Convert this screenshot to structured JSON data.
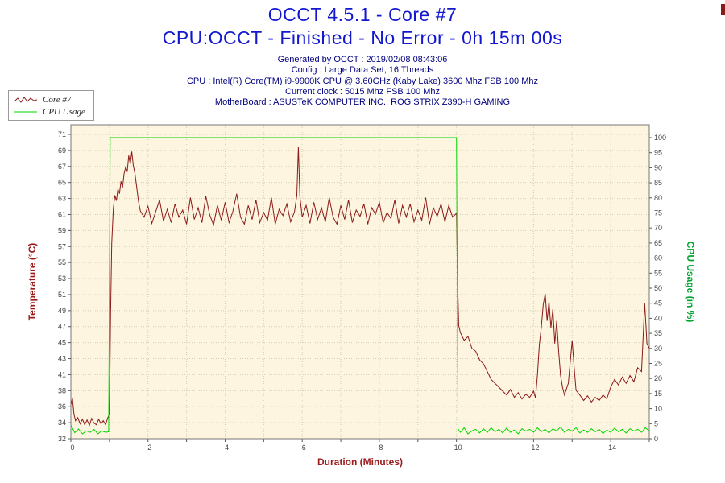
{
  "header": {
    "title": "OCCT 4.5.1 - Core #7",
    "subtitle": "CPU:OCCT - Finished - No Error - 0h 15m 00s",
    "info_lines": [
      "Generated by OCCT : 2019/02/08 08:43:06",
      "Config : Large Data Set, 16 Threads",
      "CPU : Intel(R) Core(TM) i9-9900K CPU @ 3.60GHz (Kaby Lake) 3600 Mhz FSB 100 Mhz",
      "Current clock : 5015 Mhz FSB 100 Mhz",
      "MotherBoard : ASUSTeK COMPUTER INC.: ROG STRIX Z390-H GAMING"
    ]
  },
  "legend": {
    "items": [
      {
        "label": "Core #7",
        "color": "#8b1a1a",
        "sample": "jagged"
      },
      {
        "label": "CPU Usage",
        "color": "#00d800",
        "sample": "straight"
      }
    ]
  },
  "colors": {
    "title_blue": "#1318cf",
    "info_navy": "#00007f",
    "temperature_red": "#9b1b1b",
    "usage_green": "#00a32e"
  },
  "chart_data": {
    "type": "line",
    "title": "OCCT 4.5.1 - Core #7",
    "subtitle": "CPU:OCCT - Finished - No Error - 0h 15m 00s",
    "xlabel": "Duration (Minutes)",
    "ylabel_left": "Temperature (°C)",
    "ylabel_right": "CPU Usage (in %)",
    "xlim": [
      0,
      15
    ],
    "x_tick_labels": [
      0,
      2,
      4,
      6,
      8,
      10,
      12,
      14
    ],
    "grid": true,
    "legend_position": "top-left",
    "plot_bg": "#fdf5df",
    "grid_color": "#d2cdb4",
    "left_axis": {
      "title": "Temperature (°C)",
      "range": [
        32,
        71
      ],
      "ticks": [
        32,
        34,
        36,
        38,
        41,
        43,
        45,
        47,
        49,
        51,
        53,
        55,
        57,
        59,
        61,
        63,
        65,
        67,
        69,
        71
      ],
      "color": "#9b1b1b"
    },
    "right_axis": {
      "title": "CPU Usage (in %)",
      "range": [
        0,
        100
      ],
      "ticks": [
        0,
        5,
        10,
        15,
        20,
        25,
        30,
        35,
        40,
        45,
        50,
        55,
        60,
        65,
        70,
        75,
        80,
        85,
        90,
        95,
        100
      ],
      "color": "#00a32e"
    },
    "series": [
      {
        "name": "Core #7",
        "axis": "left",
        "color": "#8b1a1a",
        "points": [
          [
            0,
            36.4
          ],
          [
            0.04,
            37.2
          ],
          [
            0.08,
            35.2
          ],
          [
            0.12,
            34.3
          ],
          [
            0.18,
            34.7
          ],
          [
            0.24,
            33.9
          ],
          [
            0.3,
            34.5
          ],
          [
            0.36,
            33.8
          ],
          [
            0.42,
            34.4
          ],
          [
            0.48,
            33.7
          ],
          [
            0.54,
            34.6
          ],
          [
            0.6,
            34
          ],
          [
            0.66,
            33.8
          ],
          [
            0.72,
            34.5
          ],
          [
            0.78,
            33.9
          ],
          [
            0.84,
            34.3
          ],
          [
            0.9,
            33.8
          ],
          [
            0.95,
            34.6
          ],
          [
            1,
            35.2
          ],
          [
            1.03,
            48
          ],
          [
            1.06,
            57
          ],
          [
            1.1,
            61.5
          ],
          [
            1.14,
            63.2
          ],
          [
            1.18,
            62.5
          ],
          [
            1.22,
            64
          ],
          [
            1.26,
            63.4
          ],
          [
            1.3,
            65
          ],
          [
            1.34,
            64.2
          ],
          [
            1.38,
            66
          ],
          [
            1.42,
            66.8
          ],
          [
            1.46,
            66.2
          ],
          [
            1.5,
            68.3
          ],
          [
            1.54,
            67.2
          ],
          [
            1.58,
            68.8
          ],
          [
            1.62,
            67
          ],
          [
            1.66,
            66
          ],
          [
            1.7,
            64.5
          ],
          [
            1.75,
            62.5
          ],
          [
            1.8,
            61.2
          ],
          [
            1.9,
            60.4
          ],
          [
            2,
            61.8
          ],
          [
            2.1,
            59.6
          ],
          [
            2.2,
            61.1
          ],
          [
            2.3,
            62.6
          ],
          [
            2.4,
            59.9
          ],
          [
            2.5,
            61.4
          ],
          [
            2.6,
            59.7
          ],
          [
            2.7,
            62.1
          ],
          [
            2.8,
            60.4
          ],
          [
            2.9,
            61.3
          ],
          [
            3,
            59.5
          ],
          [
            3.1,
            62.9
          ],
          [
            3.2,
            60.1
          ],
          [
            3.3,
            61.6
          ],
          [
            3.4,
            59.7
          ],
          [
            3.5,
            63.1
          ],
          [
            3.6,
            60.7
          ],
          [
            3.7,
            59.4
          ],
          [
            3.8,
            61.9
          ],
          [
            3.9,
            60
          ],
          [
            4,
            62.3
          ],
          [
            4.1,
            59.7
          ],
          [
            4.2,
            61.1
          ],
          [
            4.3,
            63.4
          ],
          [
            4.4,
            60.4
          ],
          [
            4.5,
            59.5
          ],
          [
            4.6,
            61.9
          ],
          [
            4.7,
            60.1
          ],
          [
            4.8,
            62.6
          ],
          [
            4.9,
            59.7
          ],
          [
            5,
            61
          ],
          [
            5.1,
            60
          ],
          [
            5.2,
            62.9
          ],
          [
            5.3,
            59.5
          ],
          [
            5.4,
            61.4
          ],
          [
            5.5,
            60.6
          ],
          [
            5.6,
            62.1
          ],
          [
            5.7,
            59.8
          ],
          [
            5.8,
            61.1
          ],
          [
            5.86,
            63.2
          ],
          [
            5.9,
            69.4
          ],
          [
            5.94,
            63
          ],
          [
            6,
            60.4
          ],
          [
            6.1,
            61.9
          ],
          [
            6.2,
            59.6
          ],
          [
            6.3,
            62.3
          ],
          [
            6.4,
            60.1
          ],
          [
            6.5,
            61.6
          ],
          [
            6.6,
            59.8
          ],
          [
            6.7,
            62.9
          ],
          [
            6.8,
            60.4
          ],
          [
            6.9,
            59.5
          ],
          [
            7,
            61.9
          ],
          [
            7.1,
            60.1
          ],
          [
            7.2,
            62.6
          ],
          [
            7.3,
            59.7
          ],
          [
            7.4,
            61.3
          ],
          [
            7.5,
            60.5
          ],
          [
            7.6,
            62.1
          ],
          [
            7.7,
            59.5
          ],
          [
            7.8,
            61.6
          ],
          [
            7.9,
            60.8
          ],
          [
            8,
            62.3
          ],
          [
            8.1,
            59.7
          ],
          [
            8.2,
            61
          ],
          [
            8.3,
            60.2
          ],
          [
            8.4,
            62.6
          ],
          [
            8.5,
            59.6
          ],
          [
            8.6,
            61.9
          ],
          [
            8.7,
            60.4
          ],
          [
            8.8,
            62.1
          ],
          [
            8.9,
            59.8
          ],
          [
            9,
            61.3
          ],
          [
            9.1,
            60
          ],
          [
            9.2,
            62.9
          ],
          [
            9.3,
            59.5
          ],
          [
            9.4,
            61.6
          ],
          [
            9.5,
            60.5
          ],
          [
            9.6,
            62.1
          ],
          [
            9.7,
            59.8
          ],
          [
            9.8,
            61.9
          ],
          [
            9.9,
            60.4
          ],
          [
            10,
            60.9
          ],
          [
            10.03,
            52
          ],
          [
            10.06,
            46.5
          ],
          [
            10.1,
            45.6
          ],
          [
            10.2,
            44.6
          ],
          [
            10.3,
            45.1
          ],
          [
            10.4,
            43.6
          ],
          [
            10.5,
            43.2
          ],
          [
            10.6,
            42.1
          ],
          [
            10.7,
            41.6
          ],
          [
            10.8,
            40.6
          ],
          [
            10.9,
            39.6
          ],
          [
            11,
            39.1
          ],
          [
            11.1,
            38.6
          ],
          [
            11.2,
            38.1
          ],
          [
            11.3,
            37.6
          ],
          [
            11.4,
            38.3
          ],
          [
            11.5,
            37.3
          ],
          [
            11.6,
            37.9
          ],
          [
            11.7,
            37.1
          ],
          [
            11.8,
            37.7
          ],
          [
            11.9,
            37.3
          ],
          [
            12,
            38.1
          ],
          [
            12.05,
            37.2
          ],
          [
            12.1,
            40.2
          ],
          [
            12.15,
            44.1
          ],
          [
            12.2,
            46.3
          ],
          [
            12.25,
            49.2
          ],
          [
            12.3,
            50.6
          ],
          [
            12.35,
            47.1
          ],
          [
            12.4,
            49.6
          ],
          [
            12.45,
            46.2
          ],
          [
            12.5,
            48.6
          ],
          [
            12.55,
            44.2
          ],
          [
            12.6,
            47.1
          ],
          [
            12.65,
            43.2
          ],
          [
            12.7,
            40.1
          ],
          [
            12.75,
            38.6
          ],
          [
            12.8,
            37.6
          ],
          [
            12.9,
            39.1
          ],
          [
            13,
            44.6
          ],
          [
            13.05,
            41.2
          ],
          [
            13.1,
            38.2
          ],
          [
            13.2,
            37.6
          ],
          [
            13.3,
            36.9
          ],
          [
            13.4,
            37.5
          ],
          [
            13.5,
            36.7
          ],
          [
            13.6,
            37.3
          ],
          [
            13.7,
            36.9
          ],
          [
            13.8,
            37.6
          ],
          [
            13.9,
            37.1
          ],
          [
            14,
            38.6
          ],
          [
            14.1,
            39.6
          ],
          [
            14.2,
            38.9
          ],
          [
            14.3,
            39.9
          ],
          [
            14.4,
            39.1
          ],
          [
            14.5,
            40.1
          ],
          [
            14.6,
            39.3
          ],
          [
            14.7,
            41.1
          ],
          [
            14.8,
            40.6
          ],
          [
            14.88,
            49.4
          ],
          [
            14.94,
            44.2
          ],
          [
            15,
            43.6
          ]
        ]
      },
      {
        "name": "CPU Usage",
        "axis": "right",
        "color": "#00d800",
        "points": [
          [
            0,
            4.5
          ],
          [
            0.1,
            2
          ],
          [
            0.2,
            3.2
          ],
          [
            0.3,
            1.6
          ],
          [
            0.4,
            2.6
          ],
          [
            0.5,
            2.1
          ],
          [
            0.6,
            3.1
          ],
          [
            0.7,
            1.6
          ],
          [
            0.8,
            2.6
          ],
          [
            0.9,
            2.1
          ],
          [
            0.98,
            2.3
          ],
          [
            1.02,
            100
          ],
          [
            10,
            100
          ],
          [
            10.04,
            3.2
          ],
          [
            10.1,
            2.1
          ],
          [
            10.2,
            3.6
          ],
          [
            10.3,
            1.6
          ],
          [
            10.4,
            2.6
          ],
          [
            10.5,
            3.1
          ],
          [
            10.6,
            1.9
          ],
          [
            10.7,
            3.3
          ],
          [
            10.8,
            2.1
          ],
          [
            10.9,
            3.6
          ],
          [
            11,
            2.3
          ],
          [
            11.1,
            3.1
          ],
          [
            11.2,
            1.9
          ],
          [
            11.3,
            3.5
          ],
          [
            11.4,
            2.1
          ],
          [
            11.5,
            2.9
          ],
          [
            11.6,
            1.6
          ],
          [
            11.7,
            3.3
          ],
          [
            11.8,
            2.5
          ],
          [
            11.9,
            3.1
          ],
          [
            12,
            2.1
          ],
          [
            12.1,
            3.6
          ],
          [
            12.2,
            2.3
          ],
          [
            12.3,
            3.1
          ],
          [
            12.4,
            1.9
          ],
          [
            12.5,
            3.3
          ],
          [
            12.6,
            2.6
          ],
          [
            12.7,
            3.9
          ],
          [
            12.8,
            2.1
          ],
          [
            12.9,
            3.1
          ],
          [
            13,
            2.5
          ],
          [
            13.1,
            3.6
          ],
          [
            13.2,
            1.9
          ],
          [
            13.3,
            2.9
          ],
          [
            13.4,
            2.1
          ],
          [
            13.5,
            3.3
          ],
          [
            13.6,
            2.3
          ],
          [
            13.7,
            3.1
          ],
          [
            13.8,
            1.7
          ],
          [
            13.9,
            2.9
          ],
          [
            14,
            2.1
          ],
          [
            14.1,
            3.5
          ],
          [
            14.2,
            2.3
          ],
          [
            14.3,
            3.1
          ],
          [
            14.4,
            1.9
          ],
          [
            14.5,
            3.3
          ],
          [
            14.6,
            2.5
          ],
          [
            14.7,
            3.1
          ],
          [
            14.8,
            2.1
          ],
          [
            14.9,
            3.6
          ],
          [
            15,
            2.6
          ]
        ]
      }
    ]
  }
}
